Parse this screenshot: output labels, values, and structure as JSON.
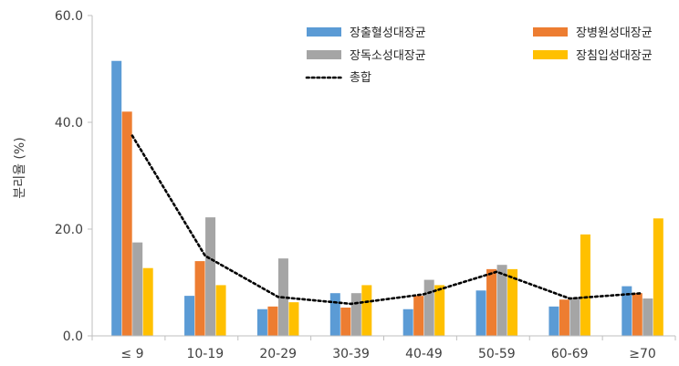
{
  "chart_data": {
    "type": "bar",
    "title": "",
    "xlabel": "",
    "ylabel": "분리율 (%)",
    "ylim": [
      0,
      60
    ],
    "yticks": [
      "0.0",
      "20.0",
      "40.0",
      "60.0"
    ],
    "categories": [
      "≤ 9",
      "10-19",
      "20-29",
      "30-39",
      "40-49",
      "50-59",
      "60-69",
      "≥70"
    ],
    "series": [
      {
        "name": "장출혈성대장균",
        "color": "#5B9BD5",
        "values": [
          51.5,
          7.5,
          5.0,
          8.0,
          5.0,
          8.5,
          5.5,
          9.3
        ]
      },
      {
        "name": "장병원성대장균",
        "color": "#ED7D31",
        "values": [
          42.0,
          14.0,
          5.5,
          5.3,
          7.5,
          12.5,
          6.8,
          8.0
        ]
      },
      {
        "name": "장독소성대장균",
        "color": "#A5A5A5",
        "values": [
          17.5,
          22.2,
          14.5,
          8.0,
          10.5,
          13.3,
          7.2,
          7.0
        ]
      },
      {
        "name": "장침입성대장균",
        "color": "#FFC000",
        "values": [
          12.7,
          9.5,
          6.3,
          9.5,
          9.5,
          12.5,
          19.0,
          22.0
        ]
      }
    ],
    "line": {
      "name": "총합",
      "color": "#000000",
      "style": "dotted",
      "values": [
        37.5,
        15.0,
        7.3,
        6.0,
        7.8,
        12.0,
        7.0,
        8.0
      ]
    },
    "legend": {
      "placement": "top-right",
      "columns": 2
    },
    "grid": false
  }
}
